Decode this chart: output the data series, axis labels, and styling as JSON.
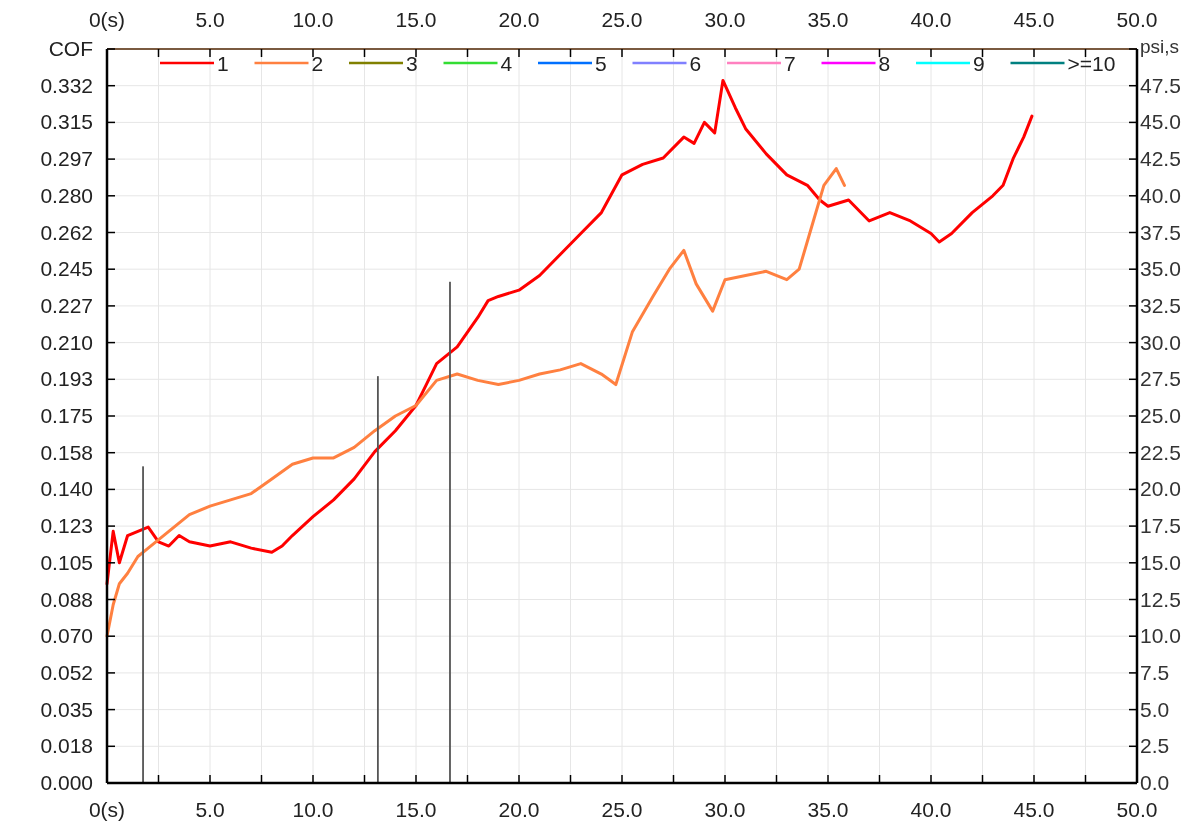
{
  "chart_data": {
    "type": "line",
    "ylabel": "COF",
    "y2label": "psi,s",
    "xlim": [
      0,
      50
    ],
    "xticks": [
      {
        "value": 0,
        "label": "0(s)"
      },
      {
        "value": 2.5,
        "label": null
      },
      {
        "value": 5,
        "label": "5.0"
      },
      {
        "value": 7.5,
        "label": null
      },
      {
        "value": 10,
        "label": "10.0"
      },
      {
        "value": 12.5,
        "label": null
      },
      {
        "value": 15,
        "label": "15.0"
      },
      {
        "value": 17.5,
        "label": null
      },
      {
        "value": 20,
        "label": "20.0"
      },
      {
        "value": 22.5,
        "label": null
      },
      {
        "value": 25,
        "label": "25.0"
      },
      {
        "value": 27.5,
        "label": null
      },
      {
        "value": 30,
        "label": "30.0"
      },
      {
        "value": 32.5,
        "label": null
      },
      {
        "value": 35,
        "label": "35.0"
      },
      {
        "value": 37.5,
        "label": null
      },
      {
        "value": 40,
        "label": "40.0"
      },
      {
        "value": 42.5,
        "label": null
      },
      {
        "value": 45,
        "label": "45.0"
      },
      {
        "value": 47.5,
        "label": null
      },
      {
        "value": 50,
        "label": "50.0"
      }
    ],
    "x2lim": [
      0,
      50
    ],
    "x2ticks": [
      {
        "value": 0,
        "label": "0(s)"
      },
      {
        "value": 2.5,
        "label": null
      },
      {
        "value": 5,
        "label": "5.0"
      },
      {
        "value": 7.5,
        "label": null
      },
      {
        "value": 10,
        "label": "10.0"
      },
      {
        "value": 12.5,
        "label": null
      },
      {
        "value": 15,
        "label": "15.0"
      },
      {
        "value": 17.5,
        "label": null
      },
      {
        "value": 20,
        "label": "20.0"
      },
      {
        "value": 22.5,
        "label": null
      },
      {
        "value": 25,
        "label": "25.0"
      },
      {
        "value": 27.5,
        "label": null
      },
      {
        "value": 30,
        "label": "30.0"
      },
      {
        "value": 32.5,
        "label": null
      },
      {
        "value": 35,
        "label": "35.0"
      },
      {
        "value": 37.5,
        "label": null
      },
      {
        "value": 40,
        "label": "40.0"
      },
      {
        "value": 42.5,
        "label": null
      },
      {
        "value": 45,
        "label": "45.0"
      },
      {
        "value": 47.5,
        "label": null
      },
      {
        "value": 50,
        "label": "50.0"
      }
    ],
    "ylim": [
      0,
      0.35
    ],
    "yticks": [
      {
        "value": 0,
        "label": "0.000"
      },
      {
        "value": 0.0175,
        "label": "0.018"
      },
      {
        "value": 0.035,
        "label": "0.035"
      },
      {
        "value": 0.0525,
        "label": "0.052"
      },
      {
        "value": 0.07,
        "label": "0.070"
      },
      {
        "value": 0.0875,
        "label": "0.088"
      },
      {
        "value": 0.105,
        "label": "0.105"
      },
      {
        "value": 0.1225,
        "label": "0.123"
      },
      {
        "value": 0.14,
        "label": "0.140"
      },
      {
        "value": 0.1575,
        "label": "0.158"
      },
      {
        "value": 0.175,
        "label": "0.175"
      },
      {
        "value": 0.1925,
        "label": "0.193"
      },
      {
        "value": 0.21,
        "label": "0.210"
      },
      {
        "value": 0.2275,
        "label": "0.227"
      },
      {
        "value": 0.245,
        "label": "0.245"
      },
      {
        "value": 0.2625,
        "label": "0.262"
      },
      {
        "value": 0.28,
        "label": "0.280"
      },
      {
        "value": 0.2975,
        "label": "0.297"
      },
      {
        "value": 0.315,
        "label": "0.315"
      },
      {
        "value": 0.3325,
        "label": "0.332"
      },
      {
        "value": 0.35,
        "label": null
      }
    ],
    "y2lim": [
      0,
      50
    ],
    "y2ticks": [
      {
        "value": 0,
        "label": "0.0"
      },
      {
        "value": 2.5,
        "label": "2.5"
      },
      {
        "value": 5,
        "label": "5.0"
      },
      {
        "value": 7.5,
        "label": "7.5"
      },
      {
        "value": 10,
        "label": "10.0"
      },
      {
        "value": 12.5,
        "label": "12.5"
      },
      {
        "value": 15,
        "label": "15.0"
      },
      {
        "value": 17.5,
        "label": "17.5"
      },
      {
        "value": 20,
        "label": "20.0"
      },
      {
        "value": 22.5,
        "label": "22.5"
      },
      {
        "value": 25,
        "label": "25.0"
      },
      {
        "value": 27.5,
        "label": "27.5"
      },
      {
        "value": 30,
        "label": "30.0"
      },
      {
        "value": 32.5,
        "label": "32.5"
      },
      {
        "value": 35,
        "label": "35.0"
      },
      {
        "value": 37.5,
        "label": "37.5"
      },
      {
        "value": 40,
        "label": "40.0"
      },
      {
        "value": 42.5,
        "label": "42.5"
      },
      {
        "value": 45,
        "label": "45.0"
      },
      {
        "value": 47.5,
        "label": "47.5"
      },
      {
        "value": 50,
        "label": null
      }
    ],
    "grid": true,
    "legend": "top",
    "series": [
      {
        "name": "1",
        "color": "#ff0000",
        "x": [
          0,
          0.3,
          0.6,
          1,
          1.5,
          2,
          2.5,
          3,
          3.5,
          4,
          5,
          6,
          7,
          8,
          8.5,
          9,
          10,
          11,
          12,
          13,
          14,
          15,
          15.5,
          16,
          17,
          18,
          18.5,
          19,
          20,
          21,
          22,
          23,
          24,
          25,
          26,
          27,
          28,
          28.5,
          29,
          29.5,
          29.9,
          30.5,
          31,
          32,
          33,
          34,
          34.6,
          35,
          36,
          37,
          38,
          39,
          40,
          40.4,
          41,
          42,
          43,
          43.5,
          44,
          44.5,
          44.9
        ],
        "values": [
          0.095,
          0.12,
          0.105,
          0.118,
          0.12,
          0.122,
          0.115,
          0.113,
          0.118,
          0.115,
          0.113,
          0.115,
          0.112,
          0.11,
          0.113,
          0.118,
          0.127,
          0.135,
          0.145,
          0.158,
          0.168,
          0.18,
          0.19,
          0.2,
          0.208,
          0.222,
          0.23,
          0.232,
          0.235,
          0.242,
          0.252,
          0.262,
          0.272,
          0.29,
          0.295,
          0.298,
          0.308,
          0.305,
          0.315,
          0.31,
          0.335,
          0.322,
          0.312,
          0.3,
          0.29,
          0.285,
          0.278,
          0.275,
          0.278,
          0.268,
          0.272,
          0.268,
          0.262,
          0.258,
          0.262,
          0.272,
          0.28,
          0.285,
          0.298,
          0.308,
          0.318
        ]
      },
      {
        "name": "2",
        "color": "#ff8040",
        "x": [
          0,
          0.3,
          0.6,
          1,
          1.5,
          2,
          3,
          4,
          5,
          6,
          7,
          8,
          9,
          10,
          11,
          12,
          13,
          14,
          15,
          16,
          17,
          18,
          19,
          20,
          21,
          22,
          23,
          24,
          24.7,
          25.5,
          26.5,
          27.3,
          28,
          28.6,
          29.4,
          30,
          31,
          32,
          33,
          33.6,
          34.2,
          34.8,
          35.4,
          35.8
        ],
        "values": [
          0.07,
          0.085,
          0.095,
          0.1,
          0.108,
          0.112,
          0.12,
          0.128,
          0.132,
          0.135,
          0.138,
          0.145,
          0.152,
          0.155,
          0.155,
          0.16,
          0.168,
          0.175,
          0.18,
          0.192,
          0.195,
          0.192,
          0.19,
          0.192,
          0.195,
          0.197,
          0.2,
          0.195,
          0.19,
          0.215,
          0.232,
          0.245,
          0.254,
          0.238,
          0.225,
          0.24,
          0.242,
          0.244,
          0.24,
          0.245,
          0.265,
          0.285,
          0.293,
          0.285
        ]
      },
      {
        "name": "3",
        "color": "#808000"
      },
      {
        "name": "4",
        "color": "#33dd33"
      },
      {
        "name": "5",
        "color": "#0070ff"
      },
      {
        "name": "6",
        "color": "#8080ff"
      },
      {
        "name": "7",
        "color": "#ff80c0"
      },
      {
        "name": "8",
        "color": "#ff00ff"
      },
      {
        "name": "9",
        "color": "#00ffff"
      },
      {
        "name": ">=10",
        "color": "#008080"
      },
      {
        "type": "bar",
        "color": "#555555",
        "x": [
          1.75,
          13.15,
          16.65
        ],
        "values": [
          0.151,
          0.194,
          0.239
        ]
      }
    ]
  }
}
